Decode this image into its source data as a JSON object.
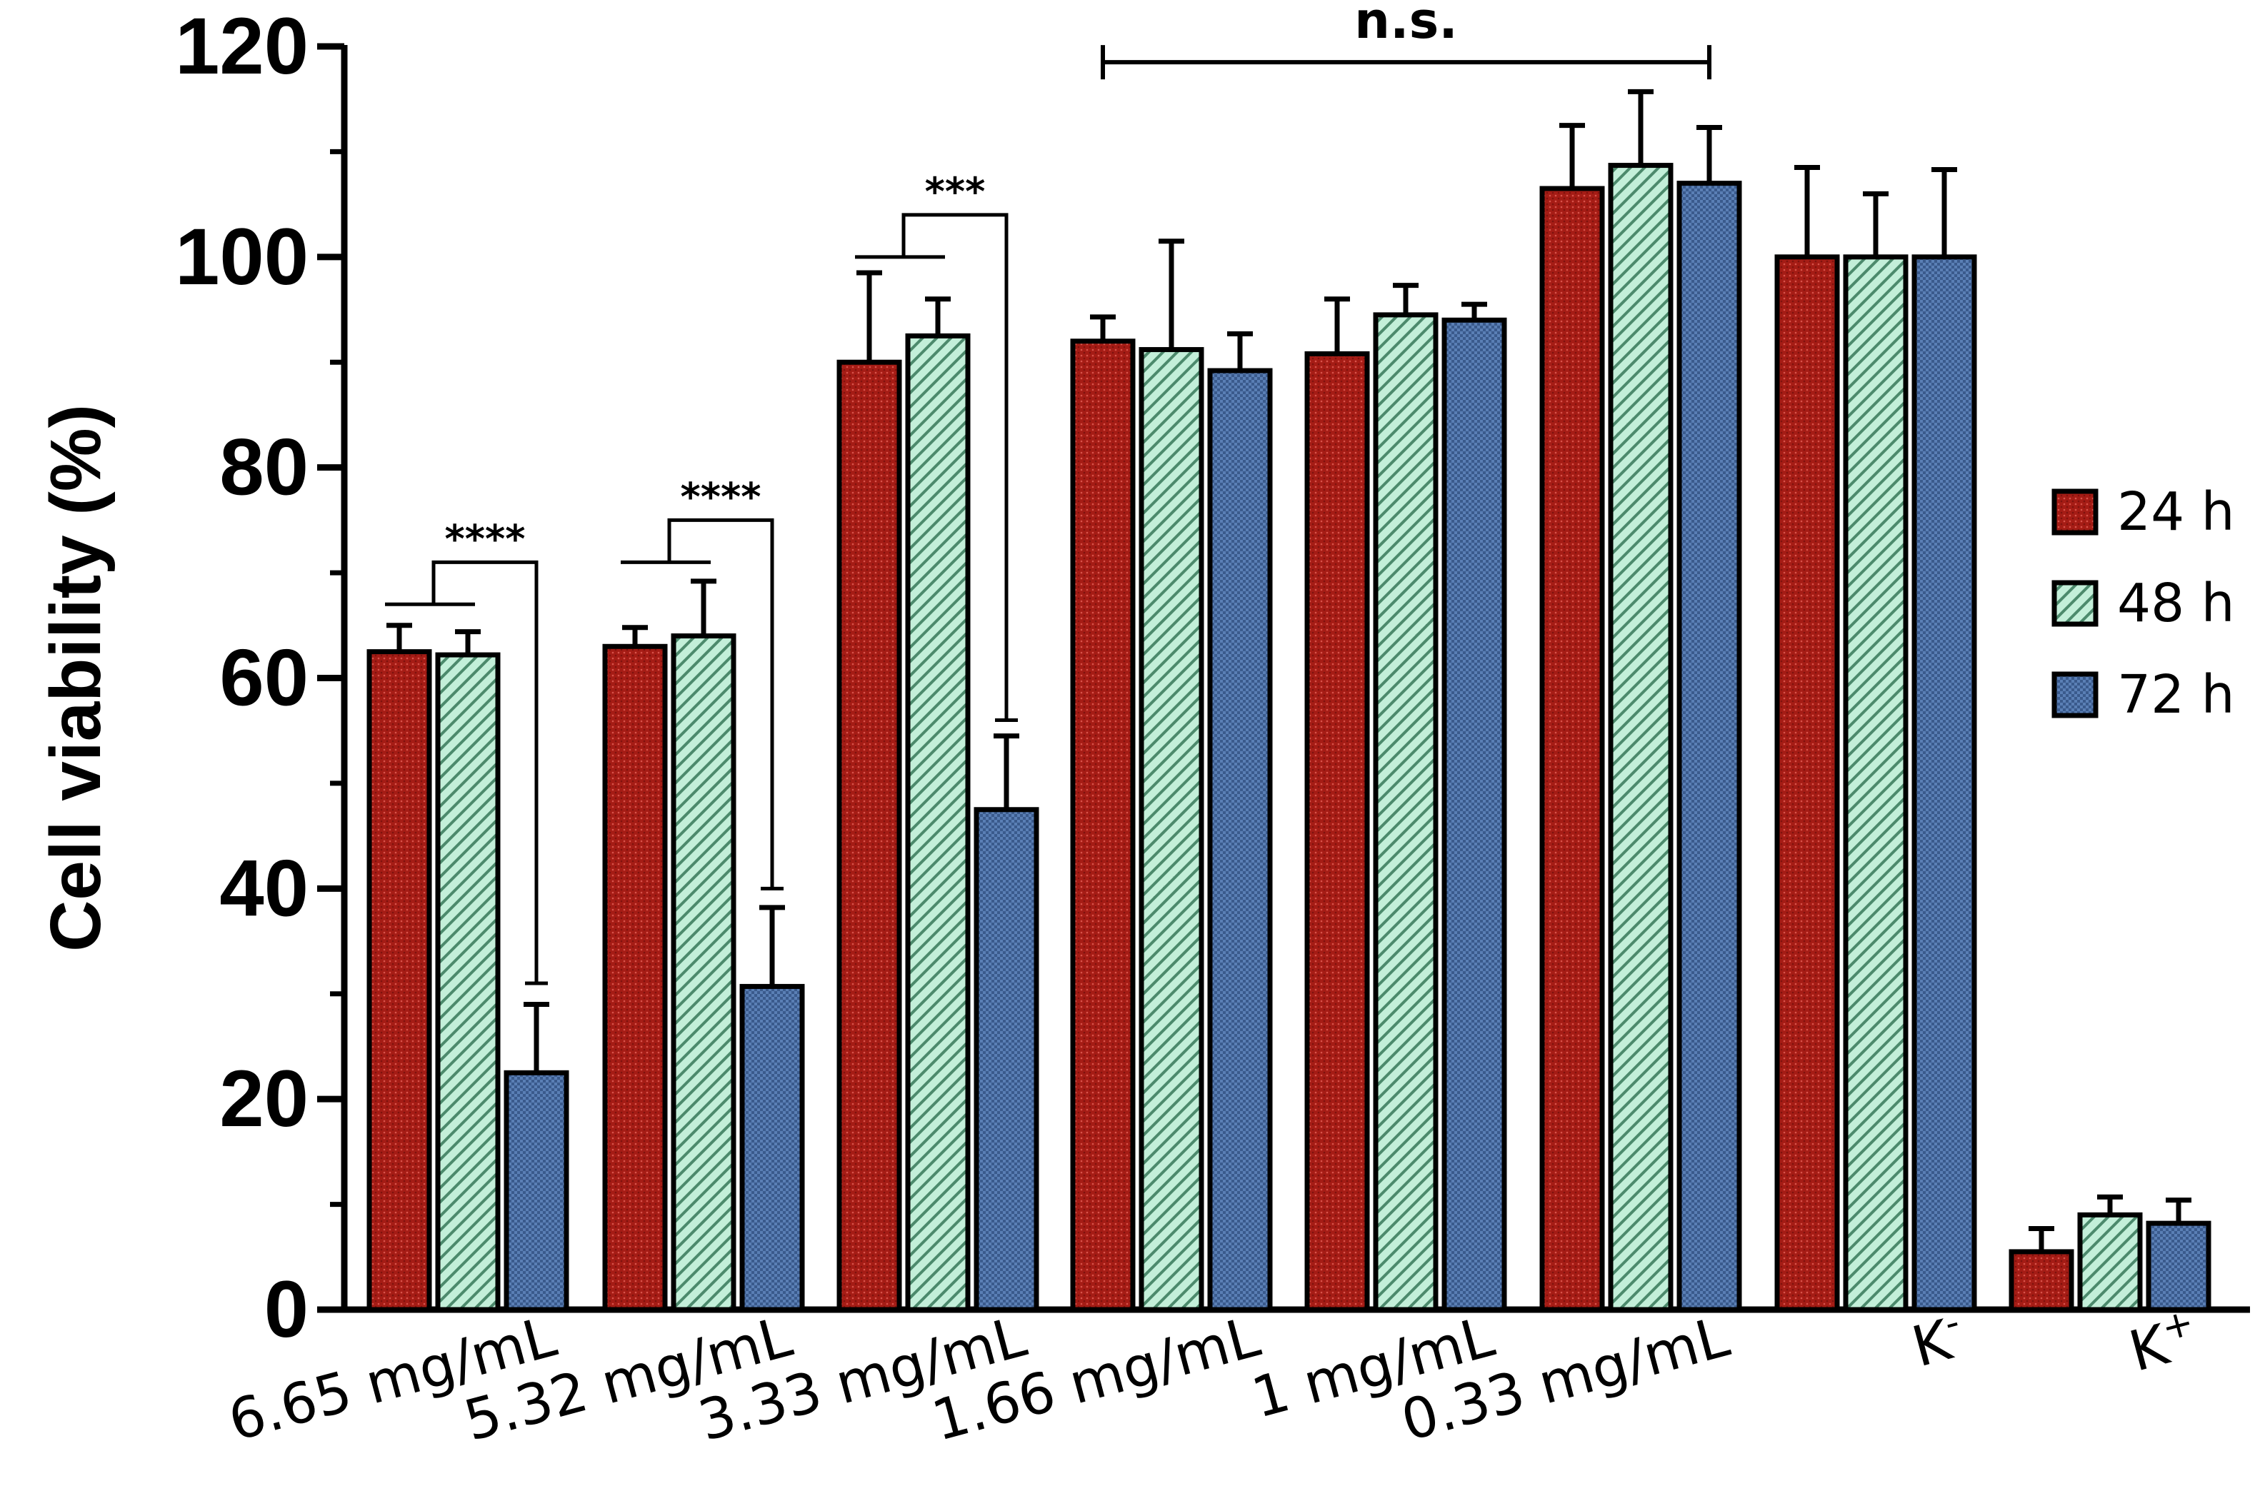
{
  "chart_data": {
    "type": "bar",
    "title": "",
    "xlabel": "",
    "ylabel": "Cell viability (%)",
    "ylim": [
      0,
      120
    ],
    "yticks": [
      "0",
      "20",
      "40",
      "60",
      "80",
      "100",
      "120"
    ],
    "grid": false,
    "legend_position": "right",
    "categories": [
      {
        "text": "6.65 mg/mL",
        "sup": ""
      },
      {
        "text": "5.32 mg/mL",
        "sup": ""
      },
      {
        "text": "3.33 mg/mL",
        "sup": ""
      },
      {
        "text": "1.66 mg/mL",
        "sup": ""
      },
      {
        "text": "1 mg/mL",
        "sup": ""
      },
      {
        "text": "0.33 mg/mL",
        "sup": ""
      },
      {
        "text": "K",
        "sup": "-"
      },
      {
        "text": "K",
        "sup": "+"
      }
    ],
    "series": [
      {
        "name": "24 h",
        "color": "#a51c15",
        "pattern": "dots",
        "values": [
          62.5,
          63,
          90,
          92,
          90.8,
          106.5,
          100,
          5.5
        ],
        "errors": [
          2.5,
          1.8,
          8.5,
          2.3,
          5.2,
          6,
          8.5,
          2.2
        ]
      },
      {
        "name": "48 h",
        "color": "#b5ead2",
        "pattern": "hatch",
        "values": [
          62.2,
          64,
          92.5,
          91.2,
          94.5,
          108.7,
          100,
          9
        ],
        "errors": [
          2.2,
          5.2,
          3.5,
          10.3,
          2.8,
          7,
          6,
          1.7
        ]
      },
      {
        "name": "72 h",
        "color": "#4f72a8",
        "pattern": "check",
        "values": [
          22.5,
          30.7,
          47.5,
          89.2,
          94,
          107,
          100,
          8.2
        ],
        "errors": [
          6.5,
          7.5,
          7,
          3.5,
          1.5,
          5.3,
          8.3,
          2.2
        ]
      }
    ],
    "annotations": [
      {
        "label": "****",
        "category_index": 0,
        "bracket_top": 71,
        "arm_bottom": 31
      },
      {
        "label": "****",
        "category_index": 1,
        "bracket_top": 75,
        "arm_bottom": 40
      },
      {
        "label": "***",
        "category_index": 2,
        "bracket_top": 104,
        "arm_bottom": 56
      }
    ],
    "ns_annotation": {
      "label": "n.s.",
      "from_category": 3,
      "to_category": 5,
      "y": 118.5
    }
  }
}
